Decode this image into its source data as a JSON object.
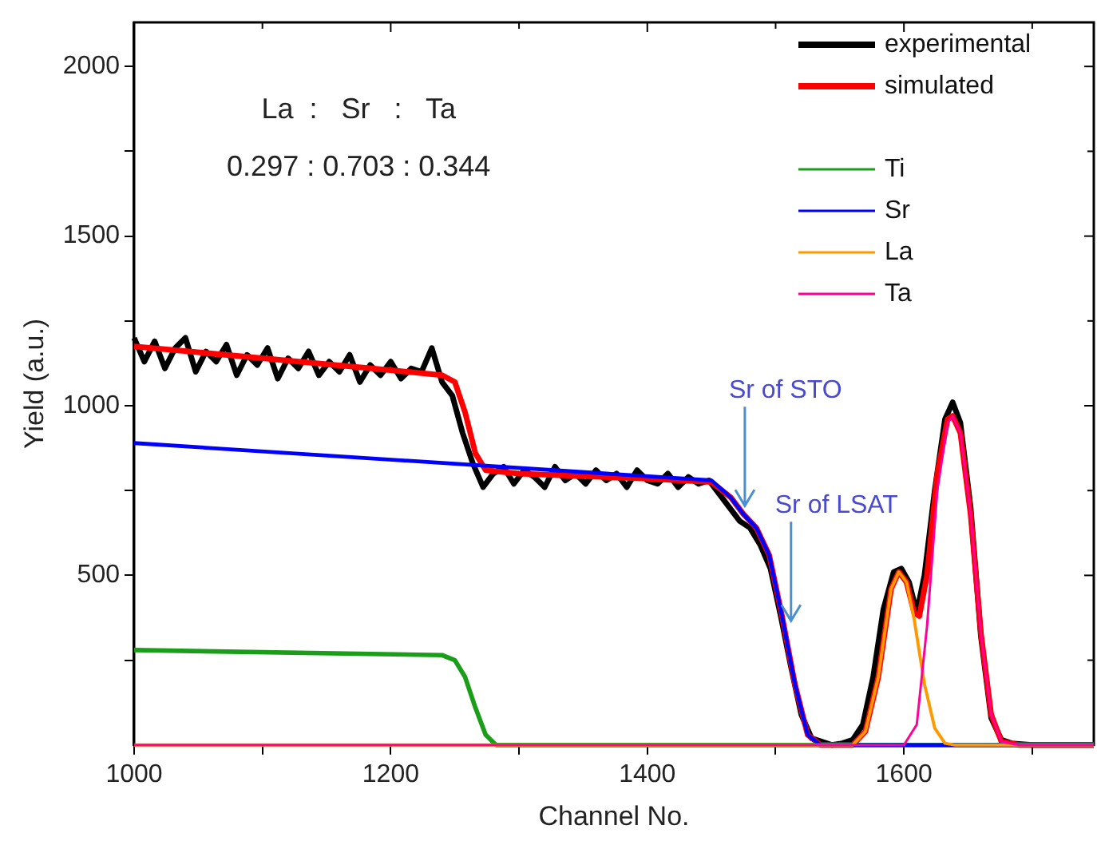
{
  "chart_data": {
    "type": "line",
    "xlabel": "Channel No.",
    "ylabel": "Yield (a.u.)",
    "xlim": [
      1000,
      1748
    ],
    "ylim": [
      0,
      2130
    ],
    "xticks": [
      1000,
      {
        "value": 1100,
        "label": null
      },
      1200,
      {
        "value": 1300,
        "label": null
      },
      1400,
      {
        "value": 1500,
        "label": null
      },
      1600,
      {
        "value": 1700,
        "label": null
      }
    ],
    "yticks": [
      {
        "value": 250,
        "label": null
      },
      500,
      {
        "value": 750,
        "label": null
      },
      1000,
      {
        "value": 1250,
        "label": null
      },
      1500,
      {
        "value": 1750,
        "label": null
      },
      2000
    ],
    "grid": false,
    "legend": "top right",
    "marker": "none",
    "line_style": "solid",
    "annotations": [
      "La  :   Sr   :   Ta",
      "0.297 : 0.703 : 0.344",
      {
        "text": "Sr of STO",
        "x": 1476,
        "y": 705
      },
      {
        "text": "Sr of LSAT",
        "x": 1512,
        "y": 366
      }
    ],
    "series": [
      {
        "name": "experimental",
        "color": "#000000",
        "x": [
          1000,
          1008,
          1016,
          1024,
          1032,
          1040,
          1048,
          1056,
          1064,
          1072,
          1080,
          1088,
          1096,
          1104,
          1112,
          1120,
          1128,
          1136,
          1144,
          1152,
          1160,
          1168,
          1176,
          1184,
          1192,
          1200,
          1208,
          1216,
          1224,
          1232,
          1240,
          1248,
          1256,
          1264,
          1272,
          1280,
          1288,
          1296,
          1304,
          1312,
          1320,
          1328,
          1336,
          1344,
          1352,
          1360,
          1368,
          1376,
          1384,
          1392,
          1400,
          1408,
          1416,
          1424,
          1432,
          1440,
          1448,
          1456,
          1464,
          1472,
          1480,
          1488,
          1496,
          1504,
          1512,
          1520,
          1528,
          1536,
          1544,
          1552,
          1560,
          1568,
          1576,
          1584,
          1592,
          1598,
          1604,
          1610,
          1616,
          1624,
          1632,
          1638,
          1644,
          1652,
          1660,
          1668,
          1676,
          1684,
          1700,
          1720,
          1748
        ],
        "values": [
          1200,
          1130,
          1190,
          1110,
          1170,
          1200,
          1100,
          1160,
          1130,
          1180,
          1090,
          1150,
          1120,
          1170,
          1080,
          1140,
          1110,
          1160,
          1090,
          1130,
          1100,
          1150,
          1070,
          1120,
          1090,
          1130,
          1080,
          1110,
          1100,
          1170,
          1070,
          1030,
          920,
          830,
          760,
          800,
          820,
          770,
          810,
          790,
          760,
          820,
          780,
          800,
          770,
          810,
          780,
          800,
          760,
          810,
          780,
          770,
          800,
          760,
          790,
          770,
          780,
          740,
          700,
          660,
          640,
          590,
          520,
          380,
          230,
          90,
          20,
          10,
          0,
          5,
          15,
          60,
          200,
          400,
          510,
          520,
          480,
          390,
          500,
          750,
          960,
          1010,
          950,
          700,
          320,
          80,
          15,
          5,
          0,
          0,
          0
        ]
      },
      {
        "name": "simulated",
        "color": "#ff0000",
        "x": [
          1000,
          1100,
          1200,
          1240,
          1250,
          1258,
          1266,
          1274,
          1300,
          1400,
          1450,
          1465,
          1475,
          1485,
          1495,
          1505,
          1515,
          1525,
          1535,
          1560,
          1570,
          1580,
          1590,
          1596,
          1602,
          1608,
          1612,
          1618,
          1626,
          1634,
          1638,
          1644,
          1652,
          1660,
          1668,
          1676,
          1690,
          1748
        ],
        "values": [
          1175,
          1140,
          1105,
          1090,
          1070,
          980,
          860,
          810,
          800,
          785,
          775,
          730,
          680,
          640,
          560,
          380,
          180,
          30,
          0,
          0,
          40,
          200,
          460,
          510,
          480,
          390,
          380,
          500,
          800,
          960,
          970,
          920,
          680,
          330,
          90,
          10,
          0,
          0
        ]
      },
      {
        "name": "Ti",
        "color": "#1a9e1a",
        "x": [
          1000,
          1240,
          1250,
          1258,
          1266,
          1274,
          1282,
          1748
        ],
        "values": [
          280,
          265,
          250,
          200,
          110,
          30,
          0,
          0
        ]
      },
      {
        "name": "Sr",
        "color": "#0000ff",
        "x": [
          1000,
          1450,
          1465,
          1475,
          1485,
          1495,
          1505,
          1515,
          1525,
          1535,
          1748
        ],
        "values": [
          890,
          780,
          730,
          680,
          640,
          560,
          380,
          180,
          30,
          0,
          0
        ]
      },
      {
        "name": "La",
        "color": "#ff9900",
        "x": [
          1000,
          1560,
          1570,
          1580,
          1590,
          1596,
          1602,
          1608,
          1616,
          1624,
          1632,
          1640,
          1748
        ],
        "values": [
          0,
          0,
          40,
          200,
          460,
          510,
          480,
          370,
          180,
          50,
          5,
          0,
          0
        ]
      },
      {
        "name": "Ta",
        "color": "#ff0099",
        "x": [
          1000,
          1600,
          1610,
          1618,
          1626,
          1634,
          1638,
          1644,
          1652,
          1660,
          1668,
          1676,
          1690,
          1748
        ],
        "values": [
          0,
          0,
          60,
          350,
          750,
          950,
          970,
          920,
          680,
          330,
          90,
          10,
          0,
          0
        ]
      }
    ]
  }
}
